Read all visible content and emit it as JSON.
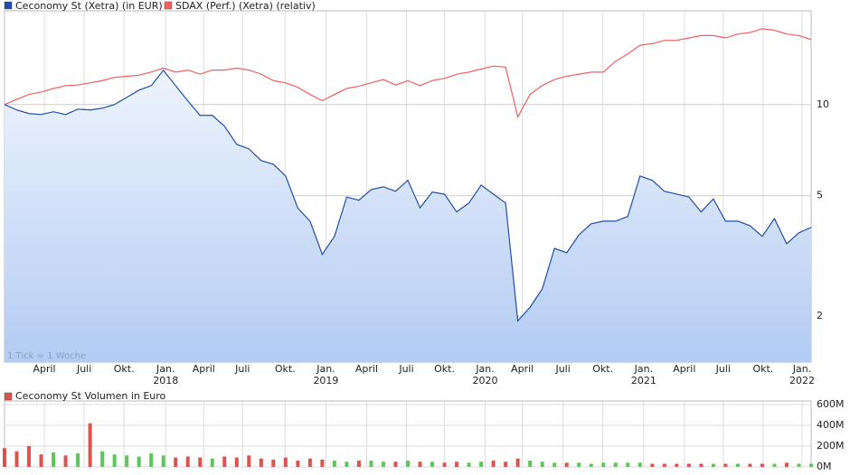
{
  "chart_data": [
    {
      "type": "line",
      "log_scale": true,
      "annotation": "1 Tick = 1 Woche",
      "x": [
        0,
        1,
        2,
        3,
        4,
        5,
        6,
        7,
        8,
        9,
        10,
        11,
        12,
        13,
        14,
        15,
        16,
        17,
        18,
        19,
        20,
        21,
        22,
        23,
        24,
        25,
        26,
        27,
        28,
        29,
        30,
        31,
        32,
        33,
        34,
        35,
        36,
        37,
        38,
        39,
        40,
        41,
        42,
        43,
        44,
        45,
        46,
        47,
        48,
        49,
        50,
        51,
        52,
        53,
        54,
        55,
        56,
        57,
        58,
        59,
        60,
        61,
        62,
        63,
        64,
        65,
        66
      ],
      "xlim": [
        0,
        66
      ],
      "xticks": [
        {
          "value": 3.26,
          "label": "April"
        },
        {
          "value": 6.52,
          "label": "Juli"
        },
        {
          "value": 9.78,
          "label": "Okt."
        },
        {
          "value": 13.19,
          "label": "Jan."
        },
        {
          "value": 16.3,
          "label": "April"
        },
        {
          "value": 19.48,
          "label": "Juli"
        },
        {
          "value": 22.96,
          "label": "Okt."
        },
        {
          "value": 26.3,
          "label": "Jan."
        },
        {
          "value": 29.63,
          "label": "April"
        },
        {
          "value": 32.89,
          "label": "Juli"
        },
        {
          "value": 36.0,
          "label": "Okt."
        },
        {
          "value": 39.33,
          "label": "Jan."
        },
        {
          "value": 42.37,
          "label": "April"
        },
        {
          "value": 45.7,
          "label": "Juli"
        },
        {
          "value": 48.96,
          "label": "Okt."
        },
        {
          "value": 52.3,
          "label": "Jan."
        },
        {
          "value": 55.63,
          "label": "April"
        },
        {
          "value": 58.81,
          "label": "Juli"
        },
        {
          "value": 62.07,
          "label": "Okt."
        },
        {
          "value": 65.26,
          "label": "Jan."
        }
      ],
      "year_labels": [
        {
          "value": 13.19,
          "label": "2018"
        },
        {
          "value": 26.3,
          "label": "2019"
        },
        {
          "value": 39.33,
          "label": "2020"
        },
        {
          "value": 52.3,
          "label": "2021"
        },
        {
          "value": 65.26,
          "label": "2022"
        }
      ],
      "ylim": [
        1.41,
        20.4
      ],
      "yticks": [
        2,
        5,
        10
      ],
      "grid": true,
      "series": [
        {
          "name": "Ceconomy St (Xetra) (in EUR)",
          "color": "#1f4fa8",
          "area": true,
          "values": [
            10,
            9.6,
            9.34,
            9.27,
            9.47,
            9.27,
            9.66,
            9.6,
            9.73,
            10,
            10.56,
            11.16,
            11.55,
            12.97,
            11.55,
            10.28,
            9.21,
            9.21,
            8.48,
            7.39,
            7.14,
            6.53,
            6.35,
            5.81,
            4.55,
            4.12,
            3.2,
            3.67,
            4.95,
            4.83,
            5.24,
            5.35,
            5.17,
            5.62,
            4.56,
            5.14,
            5.06,
            4.42,
            4.73,
            5.42,
            5.06,
            4.73,
            1.93,
            2.14,
            2.46,
            3.35,
            3.24,
            3.71,
            4.04,
            4.12,
            4.12,
            4.27,
            5.81,
            5.62,
            5.17,
            5.06,
            4.95,
            4.42,
            4.88,
            4.12,
            4.12,
            3.98,
            3.67,
            4.2,
            3.47,
            3.77,
            3.93
          ]
        },
        {
          "name": "SDAX (Perf.) (Xetra) (relativ)",
          "color": "#f06060",
          "values": [
            10,
            10.4,
            10.8,
            11.0,
            11.3,
            11.55,
            11.6,
            11.8,
            12.0,
            12.3,
            12.4,
            12.5,
            12.8,
            13.2,
            12.8,
            13.0,
            12.6,
            13.0,
            13.0,
            13.2,
            13.0,
            12.6,
            12.0,
            11.8,
            11.4,
            10.8,
            10.3,
            10.8,
            11.3,
            11.5,
            11.8,
            12.1,
            11.6,
            12.0,
            11.55,
            12.0,
            12.2,
            12.6,
            12.8,
            13.1,
            13.4,
            13.3,
            9.1,
            10.8,
            11.55,
            12.1,
            12.4,
            12.6,
            12.8,
            12.8,
            13.9,
            14.7,
            15.7,
            15.9,
            16.3,
            16.3,
            16.6,
            16.9,
            16.9,
            16.6,
            17.1,
            17.3,
            17.8,
            17.6,
            17.1,
            16.9,
            16.4
          ]
        }
      ]
    },
    {
      "type": "bar",
      "series": [
        {
          "name": "Ceconomy St Volumen in Euro",
          "color": "#d9534f",
          "up_color": "#5cc55c",
          "values": [
            180000000,
            150000000,
            200000000,
            120000000,
            140000000,
            110000000,
            130000000,
            420000000,
            150000000,
            120000000,
            110000000,
            100000000,
            130000000,
            110000000,
            90000000,
            100000000,
            90000000,
            80000000,
            100000000,
            90000000,
            110000000,
            80000000,
            70000000,
            90000000,
            60000000,
            80000000,
            70000000,
            60000000,
            50000000,
            60000000,
            60000000,
            50000000,
            50000000,
            60000000,
            50000000,
            50000000,
            40000000,
            50000000,
            40000000,
            50000000,
            60000000,
            50000000,
            80000000,
            60000000,
            50000000,
            40000000,
            40000000,
            40000000,
            30000000,
            40000000,
            40000000,
            40000000,
            40000000,
            30000000,
            30000000,
            30000000,
            30000000,
            30000000,
            30000000,
            30000000,
            30000000,
            30000000,
            30000000,
            30000000,
            40000000,
            30000000,
            30000000
          ]
        }
      ],
      "ylim": [
        0,
        600000000
      ],
      "yticks": [
        {
          "value": 0,
          "label": "0M"
        },
        {
          "value": 200000000,
          "label": "200M"
        },
        {
          "value": 400000000,
          "label": "400M"
        },
        {
          "value": 600000000,
          "label": "600M"
        }
      ]
    }
  ]
}
